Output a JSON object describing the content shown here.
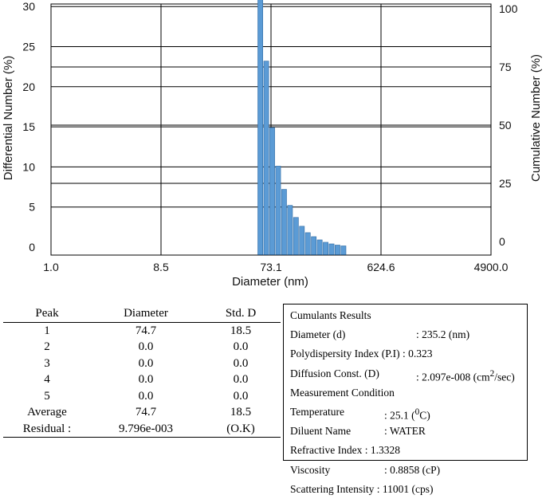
{
  "chart_data": {
    "type": "bar",
    "x_ticks": [
      "1.0",
      "8.5",
      "73.1",
      "624.6",
      "4900.0"
    ],
    "xlabel": "Diameter (nm)",
    "ylabel_left": "Differential Number (%)",
    "ylabel_right": "Cumulative Number (%)",
    "y_left_ticks": [
      0,
      5,
      10,
      15,
      20,
      25,
      30
    ],
    "y_right_ticks": [
      0,
      25,
      50,
      75,
      100
    ],
    "ylim_left": [
      0,
      35
    ],
    "ylim_right": [
      0,
      100
    ],
    "grid": true,
    "bar_color": "#5B9BD5",
    "bars": [
      {
        "x": 60.2,
        "value": 32.2
      },
      {
        "x": 66.8,
        "value": 23.2
      },
      {
        "x": 73.1,
        "value": 14.9
      },
      {
        "x": 80.5,
        "value": 10.1
      },
      {
        "x": 88.6,
        "value": 7.2
      },
      {
        "x": 97.5,
        "value": 5.2
      },
      {
        "x": 107.3,
        "value": 3.7
      },
      {
        "x": 118.1,
        "value": 2.6
      },
      {
        "x": 129.9,
        "value": 1.8
      },
      {
        "x": 142.9,
        "value": 1.3
      },
      {
        "x": 157.2,
        "value": 0.9
      },
      {
        "x": 173.0,
        "value": 0.6
      },
      {
        "x": 190.3,
        "value": 0.4
      },
      {
        "x": 209.4,
        "value": 0.25
      },
      {
        "x": 230.4,
        "value": 0.15
      }
    ]
  },
  "peak_table": {
    "headers": [
      "Peak",
      "Diameter",
      "Std. D"
    ],
    "rows": [
      [
        "1",
        "74.7",
        "18.5"
      ],
      [
        "2",
        "0.0",
        "0.0"
      ],
      [
        "3",
        "0.0",
        "0.0"
      ],
      [
        "4",
        "0.0",
        "0.0"
      ],
      [
        "5",
        "0.0",
        "0.0"
      ],
      [
        "Average",
        "74.7",
        "18.5"
      ],
      [
        "Residual :",
        "9.796e-003",
        "(O.K)"
      ]
    ]
  },
  "cumulants": {
    "title": "Cumulants Results",
    "diameter_label": "Diameter (d)",
    "diameter_value": ": 235.2 (nm)",
    "pdi_label": "Polydispersity Index (P.I)",
    "pdi_value": ": 0.323",
    "diffusion_label": "Diffusion Const.  (D)",
    "diffusion_value": ": 2.097e-008",
    "diffusion_unit_pre": "(cm",
    "diffusion_unit_sup": "2",
    "diffusion_unit_post": "/sec)",
    "measurement_title": "Measurement Condition",
    "temperature_label": "Temperature",
    "temperature_value": ": 25.1",
    "temperature_unit_pre": "(",
    "temperature_unit_sup": "0",
    "temperature_unit_post": "C)",
    "diluent_label": "Diluent Name",
    "diluent_value": ": WATER",
    "refractive_label": "Refractive Index",
    "refractive_value": ": 1.3328",
    "viscosity_label": "Viscosity",
    "viscosity_value": ": 0.8858  (cP)",
    "scattering_label": "Scattering Intensity",
    "scattering_value": ": 11001  (cps)"
  }
}
